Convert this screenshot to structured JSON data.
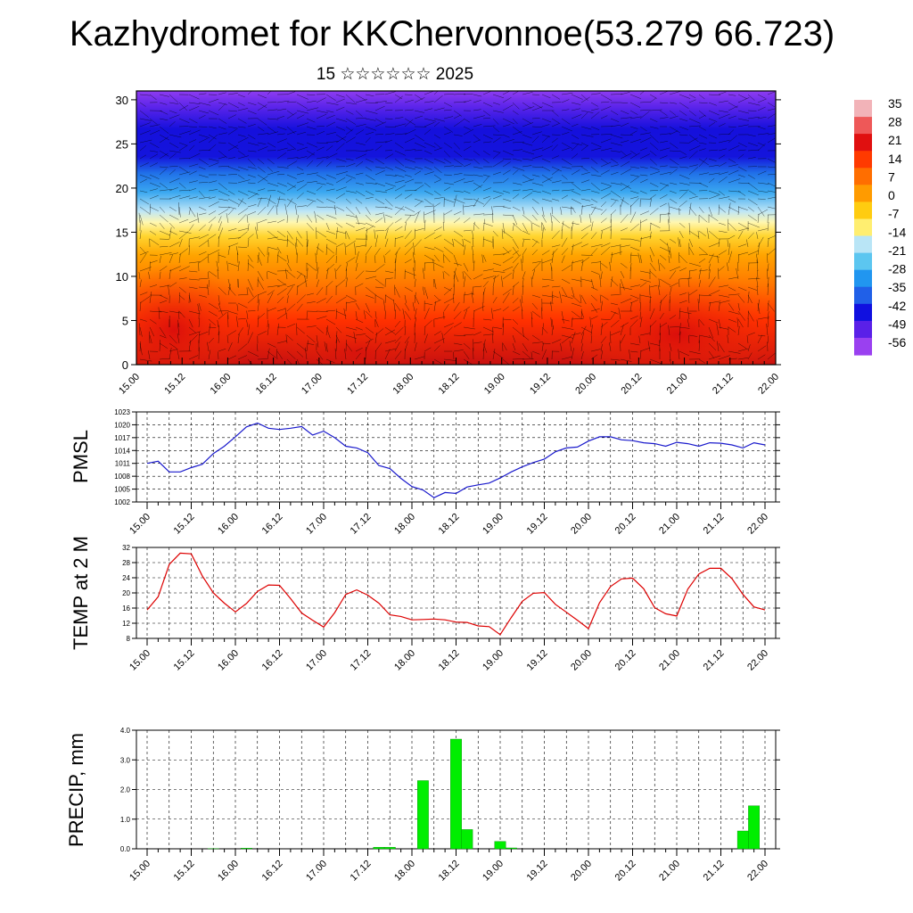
{
  "title": "Kazhydromet for KKChervonnoe(53.279 66.723)",
  "subtitle": "15 ☆☆☆☆☆☆ 2025",
  "colors": {
    "pmsl_line": "#1a1acc",
    "temp_line": "#dd0000",
    "precip_bar": "#00ee00",
    "precip_bar_edge": "#008800"
  },
  "x_ticks": [
    "15.00",
    "15.12",
    "16.00",
    "16.12",
    "17.00",
    "17.12",
    "18.00",
    "18.12",
    "19.00",
    "19.12",
    "20.00",
    "20.12",
    "21.00",
    "21.12",
    "22.00"
  ],
  "chart_data": [
    {
      "type": "heatmap",
      "name": "cross-section",
      "xlabel": "",
      "ylabel": "",
      "ylim": [
        0,
        31
      ],
      "y_ticks": [
        0,
        5,
        10,
        15,
        20,
        25,
        30
      ],
      "overlay": "wind vectors",
      "colorbar": {
        "labels": [
          "35",
          "28",
          "21",
          "14",
          "7",
          "0",
          "-7",
          "-14",
          "-21",
          "-28",
          "-35",
          "-42",
          "-49",
          "-56"
        ],
        "colors_top_to_bottom": [
          "#f2b3b8",
          "#ee5858",
          "#e01010",
          "#ff3a00",
          "#ff6e00",
          "#ff9b00",
          "#ffcc10",
          "#ffee70",
          "#b9e5f6",
          "#5cc6f0",
          "#2196f0",
          "#2060e8",
          "#1010e0",
          "#5a20e8",
          "#9a40f0"
        ]
      },
      "value_notes": "temperature profile: warm (14 to 28) near surface, 0 near 13-15, cold (-56) at 22-27"
    },
    {
      "type": "line",
      "ylabel": "PMSL",
      "ylim": [
        1002,
        1023
      ],
      "y_ticks": [
        1002,
        1005,
        1008,
        1011,
        1014,
        1017,
        1020,
        1023
      ],
      "x_hours": [
        0,
        3,
        6,
        9,
        12,
        15,
        18,
        21,
        24,
        27,
        30,
        33,
        36,
        39,
        42,
        45,
        48,
        51,
        54,
        57,
        60,
        63,
        66,
        69,
        72,
        75,
        78,
        81,
        84,
        87,
        90,
        93,
        96,
        99,
        102,
        105,
        108,
        111,
        114,
        117,
        120,
        123,
        126,
        129,
        132,
        135,
        138,
        141,
        144,
        147,
        150,
        153,
        156,
        159,
        162,
        165,
        168
      ],
      "values": [
        1011,
        1011.5,
        1009,
        1009,
        1010,
        1010.8,
        1013.3,
        1015,
        1017.2,
        1019.5,
        1020.4,
        1019.2,
        1018.9,
        1019.2,
        1019.6,
        1017.6,
        1018.5,
        1017,
        1015,
        1014.6,
        1013.5,
        1010.5,
        1009.8,
        1007.5,
        1005.6,
        1004.8,
        1003,
        1004.2,
        1004,
        1005.5,
        1006,
        1006.4,
        1007.6,
        1009,
        1010.2,
        1011.2,
        1012,
        1013.7,
        1014.6,
        1014.8,
        1016.2,
        1017.2,
        1017.2,
        1016.5,
        1016.3,
        1015.8,
        1015.6,
        1015,
        1015.9,
        1015.6,
        1015,
        1015.8,
        1015.7,
        1015.3,
        1014.6,
        1015.8,
        1015.3
      ]
    },
    {
      "type": "line",
      "ylabel": "TEMP at 2 M",
      "ylim": [
        8,
        32
      ],
      "y_ticks": [
        8,
        12,
        16,
        20,
        24,
        28,
        32
      ],
      "x_hours": [
        0,
        3,
        6,
        9,
        12,
        15,
        18,
        21,
        24,
        27,
        30,
        33,
        36,
        39,
        42,
        45,
        48,
        51,
        54,
        57,
        60,
        63,
        66,
        69,
        72,
        75,
        78,
        81,
        84,
        87,
        90,
        93,
        96,
        99,
        102,
        105,
        108,
        111,
        114,
        117,
        120,
        123,
        126,
        129,
        132,
        135,
        138,
        141,
        144,
        147,
        150,
        153,
        156,
        159,
        162,
        165,
        168
      ],
      "values": [
        15.5,
        19,
        27.5,
        30.5,
        30.3,
        24.5,
        20,
        17.3,
        15,
        17.2,
        20.4,
        22.1,
        22,
        18.5,
        14.7,
        12.8,
        11,
        14.8,
        19.6,
        20.8,
        19.4,
        17.3,
        14.2,
        13.8,
        12.9,
        13,
        13.1,
        12.9,
        12.3,
        12.2,
        11.3,
        11.1,
        9,
        13.5,
        17.8,
        19.9,
        20.1,
        17,
        14.9,
        12.8,
        10.6,
        17.4,
        21.7,
        23.7,
        23.9,
        21.1,
        16.1,
        14.5,
        13.9,
        21,
        25,
        26.5,
        26.5,
        23.8,
        19.6,
        16.3,
        15.5
      ]
    },
    {
      "type": "bar",
      "ylabel": "PRECIP, mm",
      "ylim": [
        0,
        4.0
      ],
      "y_ticks": [
        "0.0",
        "1.0",
        "2.0",
        "3.0",
        "4.0"
      ],
      "x_hours": [
        18,
        27,
        63,
        66,
        75,
        84,
        87,
        96,
        99,
        162,
        165
      ],
      "values": [
        0.01,
        0.02,
        0.05,
        0.05,
        2.3,
        3.7,
        0.65,
        0.25,
        0.03,
        0.6,
        1.45
      ]
    }
  ]
}
